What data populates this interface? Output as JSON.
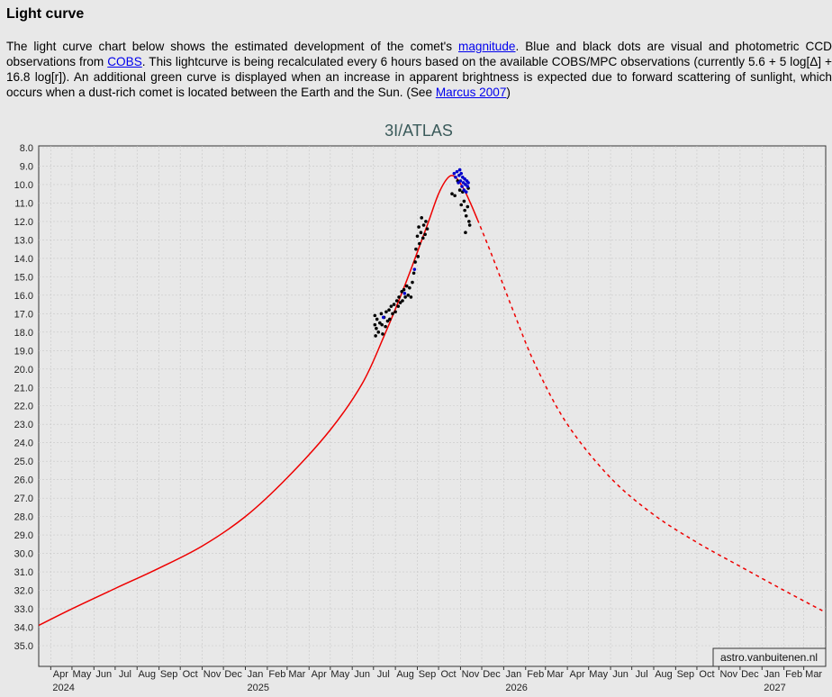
{
  "heading": "Light curve",
  "intro": {
    "t1": "The light curve chart below shows the estimated development of the comet's ",
    "link_magnitude": "magnitude",
    "t2": ". Blue and black dots are visual and photometric CCD observations from ",
    "link_cobs": "COBS",
    "t3": ". This lightcurve is being recalculated every 6 hours based on the available COBS/MPC observations (currently 5.6 + 5 log[Δ] + 16.8 log[r]). An additional green curve is displayed when an increase in apparent brightness is expected due to forward scattering of sunlight, which occurs when a dust-rich comet is located between the Earth and the Sun. (See ",
    "link_marcus": "Marcus 2007",
    "t4": ")"
  },
  "credit": "astro.vanbuitenen.nl",
  "colors": {
    "curve": "#ee0000",
    "visual_obs": "#0000cc",
    "ccd_obs": "#000000",
    "plot_bg": "#e8e8e8",
    "grid": "#c8c8c8"
  },
  "chart_data": {
    "type": "line",
    "title": "3I/ATLAS",
    "xlabel": "",
    "ylabel": "",
    "y_inverted": true,
    "ylim": [
      8.0,
      35.0
    ],
    "yticks": [
      8.0,
      9.0,
      10.0,
      11.0,
      12.0,
      13.0,
      14.0,
      15.0,
      16.0,
      17.0,
      18.0,
      19.0,
      20.0,
      21.0,
      22.0,
      23.0,
      24.0,
      25.0,
      26.0,
      27.0,
      28.0,
      29.0,
      30.0,
      31.0,
      32.0,
      33.0,
      34.0,
      35.0
    ],
    "xlim": [
      "2024-03-15",
      "2027-04-01"
    ],
    "month_ticks": [
      {
        "label": "Apr",
        "date": "2024-04-01"
      },
      {
        "label": "May",
        "date": "2024-05-01"
      },
      {
        "label": "Jun",
        "date": "2024-06-01"
      },
      {
        "label": "Jul",
        "date": "2024-07-01"
      },
      {
        "label": "Aug",
        "date": "2024-08-01"
      },
      {
        "label": "Sep",
        "date": "2024-09-01"
      },
      {
        "label": "Oct",
        "date": "2024-10-01"
      },
      {
        "label": "Nov",
        "date": "2024-11-01"
      },
      {
        "label": "Dec",
        "date": "2024-12-01"
      },
      {
        "label": "Jan",
        "date": "2025-01-01"
      },
      {
        "label": "Feb",
        "date": "2025-02-01"
      },
      {
        "label": "Mar",
        "date": "2025-03-01"
      },
      {
        "label": "Apr",
        "date": "2025-04-01"
      },
      {
        "label": "May",
        "date": "2025-05-01"
      },
      {
        "label": "Jun",
        "date": "2025-06-01"
      },
      {
        "label": "Jul",
        "date": "2025-07-01"
      },
      {
        "label": "Aug",
        "date": "2025-08-01"
      },
      {
        "label": "Sep",
        "date": "2025-09-01"
      },
      {
        "label": "Oct",
        "date": "2025-10-01"
      },
      {
        "label": "Nov",
        "date": "2025-11-01"
      },
      {
        "label": "Dec",
        "date": "2025-12-01"
      },
      {
        "label": "Jan",
        "date": "2026-01-01"
      },
      {
        "label": "Feb",
        "date": "2026-02-01"
      },
      {
        "label": "Mar",
        "date": "2026-03-01"
      },
      {
        "label": "Apr",
        "date": "2026-04-01"
      },
      {
        "label": "May",
        "date": "2026-05-01"
      },
      {
        "label": "Jun",
        "date": "2026-06-01"
      },
      {
        "label": "Jul",
        "date": "2026-07-01"
      },
      {
        "label": "Aug",
        "date": "2026-08-01"
      },
      {
        "label": "Sep",
        "date": "2026-09-01"
      },
      {
        "label": "Oct",
        "date": "2026-10-01"
      },
      {
        "label": "Nov",
        "date": "2026-11-01"
      },
      {
        "label": "Dec",
        "date": "2026-12-01"
      },
      {
        "label": "Jan",
        "date": "2027-01-01"
      },
      {
        "label": "Feb",
        "date": "2027-02-01"
      },
      {
        "label": "Mar",
        "date": "2027-03-01"
      }
    ],
    "year_ticks": [
      {
        "label": "2024",
        "date": "2024-04-01"
      },
      {
        "label": "2025",
        "date": "2025-01-01"
      },
      {
        "label": "2026",
        "date": "2026-01-01"
      },
      {
        "label": "2027",
        "date": "2027-01-01"
      }
    ],
    "series": [
      {
        "style": "solid",
        "points": [
          [
            "2024-03-15",
            33.9
          ],
          [
            "2024-05-01",
            33.0
          ],
          [
            "2024-07-01",
            31.9
          ],
          [
            "2024-09-01",
            30.8
          ],
          [
            "2024-11-01",
            29.6
          ],
          [
            "2025-01-01",
            28.0
          ],
          [
            "2025-03-01",
            25.9
          ],
          [
            "2025-05-01",
            23.3
          ],
          [
            "2025-06-15",
            20.8
          ],
          [
            "2025-07-15",
            18.3
          ],
          [
            "2025-08-15",
            15.4
          ],
          [
            "2025-09-15",
            12.2
          ],
          [
            "2025-10-01",
            10.5
          ],
          [
            "2025-10-15",
            9.6
          ],
          [
            "2025-10-25",
            9.6
          ],
          [
            "2025-11-05",
            10.2
          ],
          [
            "2025-11-15",
            11.0
          ],
          [
            "2025-11-25",
            11.9
          ]
        ]
      },
      {
        "style": "dashed",
        "points": [
          [
            "2025-11-25",
            11.9
          ],
          [
            "2025-12-15",
            13.8
          ],
          [
            "2026-01-15",
            16.9
          ],
          [
            "2026-02-15",
            19.8
          ],
          [
            "2026-04-01",
            23.0
          ],
          [
            "2026-06-01",
            25.9
          ],
          [
            "2026-08-01",
            27.9
          ],
          [
            "2026-10-01",
            29.4
          ],
          [
            "2026-12-01",
            30.7
          ],
          [
            "2027-02-01",
            32.0
          ],
          [
            "2027-04-01",
            33.2
          ]
        ]
      }
    ],
    "observations": [
      {
        "kind": "ccd",
        "points": [
          [
            "2025-07-03",
            17.1
          ],
          [
            "2025-07-03",
            17.6
          ],
          [
            "2025-07-04",
            18.2
          ],
          [
            "2025-07-05",
            17.8
          ],
          [
            "2025-07-06",
            17.3
          ],
          [
            "2025-07-08",
            18.0
          ],
          [
            "2025-07-10",
            17.5
          ],
          [
            "2025-07-12",
            17.0
          ],
          [
            "2025-07-13",
            17.6
          ],
          [
            "2025-07-14",
            18.1
          ],
          [
            "2025-07-16",
            17.2
          ],
          [
            "2025-07-18",
            17.7
          ],
          [
            "2025-07-19",
            16.9
          ],
          [
            "2025-07-21",
            17.4
          ],
          [
            "2025-07-23",
            16.8
          ],
          [
            "2025-07-24",
            17.3
          ],
          [
            "2025-07-26",
            16.6
          ],
          [
            "2025-07-28",
            17.0
          ],
          [
            "2025-07-30",
            16.5
          ],
          [
            "2025-08-01",
            16.9
          ],
          [
            "2025-08-03",
            16.3
          ],
          [
            "2025-08-05",
            16.6
          ],
          [
            "2025-08-06",
            16.1
          ],
          [
            "2025-08-08",
            16.4
          ],
          [
            "2025-08-10",
            15.8
          ],
          [
            "2025-08-11",
            16.3
          ],
          [
            "2025-08-13",
            15.7
          ],
          [
            "2025-08-15",
            16.1
          ],
          [
            "2025-08-17",
            15.5
          ],
          [
            "2025-08-19",
            16.0
          ],
          [
            "2025-08-21",
            15.6
          ],
          [
            "2025-08-23",
            16.1
          ],
          [
            "2025-08-25",
            15.3
          ],
          [
            "2025-08-27",
            14.8
          ],
          [
            "2025-08-29",
            14.2
          ],
          [
            "2025-08-30",
            13.5
          ],
          [
            "2025-09-01",
            12.8
          ],
          [
            "2025-09-02",
            13.9
          ],
          [
            "2025-09-03",
            12.3
          ],
          [
            "2025-09-04",
            13.2
          ],
          [
            "2025-09-06",
            12.6
          ],
          [
            "2025-09-07",
            11.8
          ],
          [
            "2025-09-09",
            12.9
          ],
          [
            "2025-09-10",
            12.2
          ],
          [
            "2025-09-12",
            12.7
          ],
          [
            "2025-09-13",
            12.0
          ],
          [
            "2025-09-15",
            12.4
          ],
          [
            "2025-10-20",
            10.5
          ],
          [
            "2025-10-24",
            10.6
          ],
          [
            "2025-10-28",
            9.8
          ],
          [
            "2025-10-31",
            10.3
          ],
          [
            "2025-11-02",
            11.1
          ],
          [
            "2025-11-04",
            10.4
          ],
          [
            "2025-11-06",
            10.9
          ],
          [
            "2025-11-07",
            11.4
          ],
          [
            "2025-11-08",
            12.6
          ],
          [
            "2025-11-09",
            11.7
          ],
          [
            "2025-11-11",
            11.2
          ],
          [
            "2025-11-12",
            10.2
          ],
          [
            "2025-11-13",
            12.0
          ],
          [
            "2025-11-14",
            12.2
          ]
        ]
      },
      {
        "kind": "visual",
        "points": [
          [
            "2025-07-15",
            17.2
          ],
          [
            "2025-08-14",
            15.9
          ],
          [
            "2025-08-28",
            14.6
          ],
          [
            "2025-10-23",
            9.4
          ],
          [
            "2025-10-25",
            9.6
          ],
          [
            "2025-10-27",
            9.3
          ],
          [
            "2025-10-29",
            9.9
          ],
          [
            "2025-10-30",
            9.5
          ],
          [
            "2025-10-31",
            9.2
          ],
          [
            "2025-11-01",
            9.8
          ],
          [
            "2025-11-02",
            9.4
          ],
          [
            "2025-11-03",
            10.1
          ],
          [
            "2025-11-04",
            9.6
          ],
          [
            "2025-11-05",
            9.9
          ],
          [
            "2025-11-06",
            10.3
          ],
          [
            "2025-11-07",
            9.7
          ],
          [
            "2025-11-08",
            10.0
          ],
          [
            "2025-11-09",
            10.4
          ],
          [
            "2025-11-10",
            9.8
          ],
          [
            "2025-11-11",
            10.1
          ],
          [
            "2025-11-12",
            9.9
          ]
        ]
      }
    ]
  }
}
